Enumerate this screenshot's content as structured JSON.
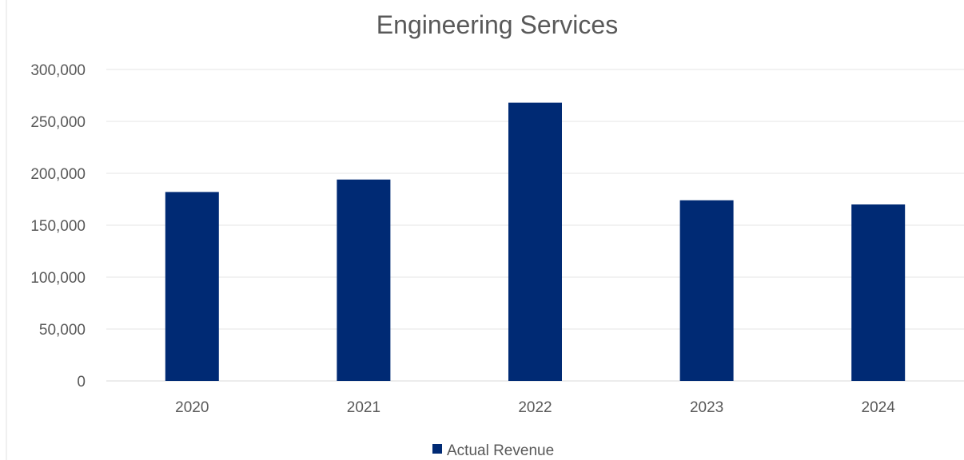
{
  "chart_data": {
    "type": "bar",
    "title": "Engineering Services",
    "categories": [
      "2020",
      "2021",
      "2022",
      "2023",
      "2024"
    ],
    "series": [
      {
        "name": "Actual Revenue",
        "values": [
          182000,
          194000,
          268000,
          174000,
          170000
        ],
        "color": "#002a74"
      }
    ],
    "ylim": [
      0,
      300000
    ],
    "yticks": [
      0,
      50000,
      100000,
      150000,
      200000,
      250000,
      300000
    ],
    "ytick_labels": [
      "0",
      "50,000",
      "100,000",
      "150,000",
      "200,000",
      "250,000",
      "300,000"
    ],
    "grid": true,
    "legend_position": "bottom"
  }
}
